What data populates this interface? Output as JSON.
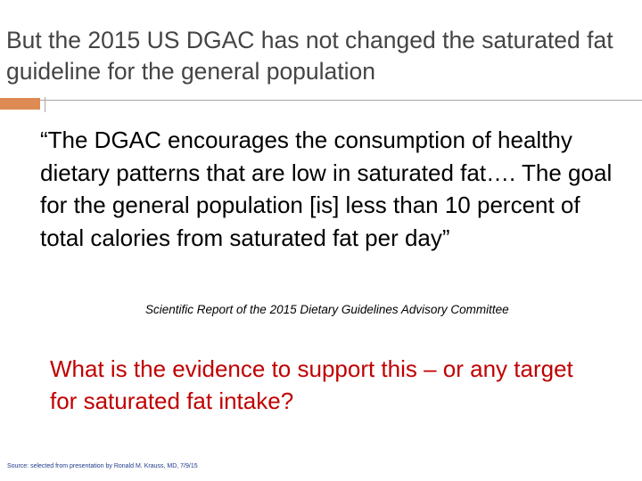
{
  "slide": {
    "title": "But the 2015 US DGAC has not changed the saturated fat guideline for the general population",
    "quote": "“The DGAC encourages the consumption of healthy dietary patterns that are low in saturated fat…. The goal for the general population [is]  less than 10 percent of total calories from saturated fat per day”",
    "citation": "Scientific Report of the 2015 Dietary Guidelines Advisory Committee",
    "question": "What is the evidence to support this – or any target for saturated fat intake?",
    "source": "Source: selected from presentation by Ronald M. Krauss, MD, 7/9/15"
  },
  "colors": {
    "title": "#444444",
    "accent": "#dd8a54",
    "question": "#c00000",
    "source": "#1f3a8a"
  }
}
